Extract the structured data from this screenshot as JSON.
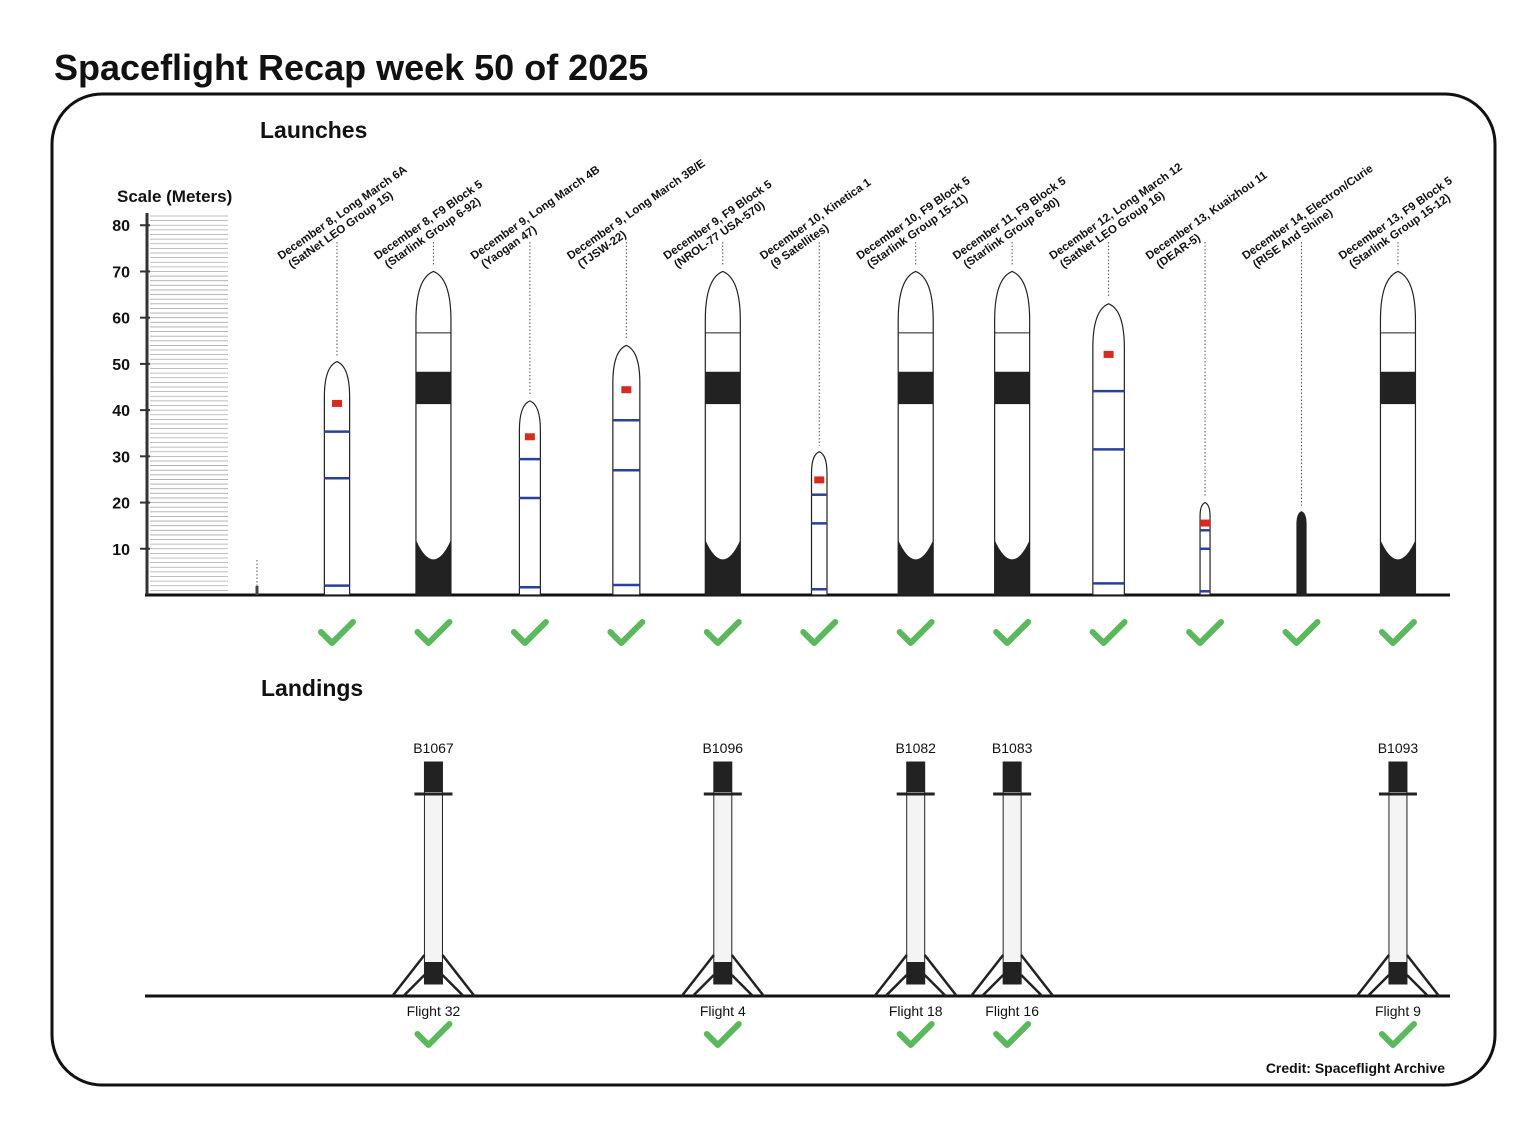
{
  "title": "Spaceflight Recap week 50 of 2025",
  "credit": "Credit: Spaceflight Archive",
  "chart_data": {
    "type": "rocket",
    "title": "Launches",
    "y_label": "Scale (Meters)",
    "ylim": [
      0,
      82
    ],
    "yticks": [
      10,
      20,
      30,
      40,
      50,
      60,
      70,
      80
    ],
    "categories": [
      "December 8, Long March 6A",
      "December 8, F9 Block 5",
      "December 9, Long March 4B",
      "December 9, Long March 3B/E",
      "December 9, F9 Block 5",
      "December 10, Kinetica 1",
      "December 10, F9 Block 5",
      "December 11, F9 Block 5",
      "December 12, Long March 12",
      "December 13, Kuaizhou 11",
      "December 14, Electron/Curie",
      "December 13, F9 Block 5"
    ],
    "missions": [
      "(SatNet LEO Group 15)",
      "(Starlink Group 6-92)",
      "(Yaogan 47)",
      "(TJSW-22)",
      "(NROL-77 USA-570)",
      "(9 Satellites)",
      "(Starlink Group 15-11)",
      "(Starlink Group 6-90)",
      "(SatNet LEO Group 16)",
      "(DEAR-5)",
      "(RISE And Shine)",
      "(Starlink Group 15-12)"
    ],
    "values": [
      50.5,
      70,
      42,
      54,
      70,
      31,
      70,
      70,
      63,
      20,
      18,
      70
    ],
    "landings_title": "Landings",
    "boosters": [
      null,
      "B1067",
      null,
      null,
      "B1096",
      null,
      "B1082",
      "B1083",
      null,
      null,
      null,
      "B1093"
    ],
    "flights": [
      null,
      "Flight 32",
      null,
      null,
      "Flight 4",
      null,
      "Flight 18",
      "Flight 16",
      null,
      null,
      null,
      "Flight 9"
    ]
  }
}
